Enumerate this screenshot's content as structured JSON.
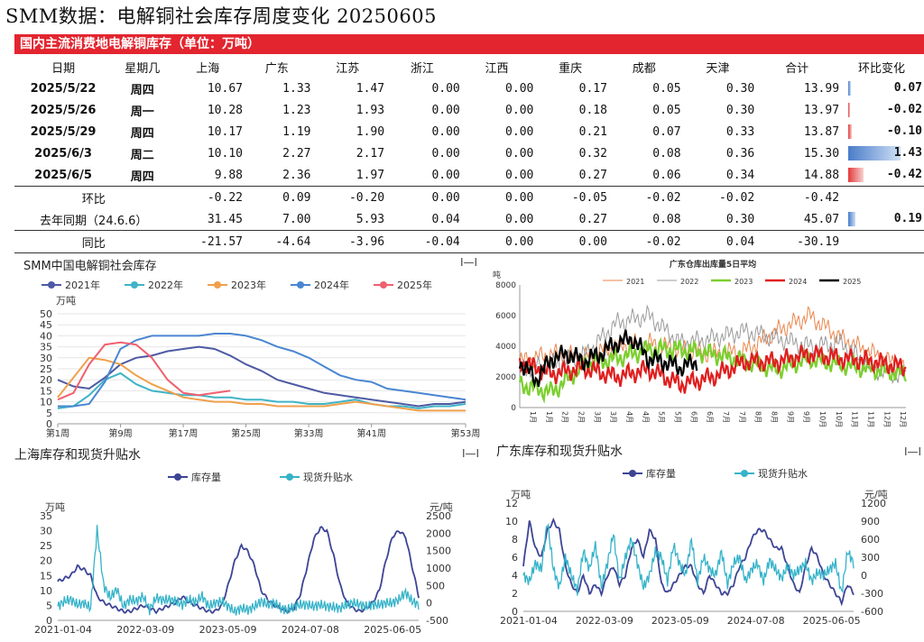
{
  "page_title": "SMM数据：电解铜社会库存周度变化 20250605",
  "table": {
    "banner": "国内主流消费地电解铜库存（单位：万吨）",
    "headers": [
      "日期",
      "星期几",
      "上海",
      "广东",
      "江苏",
      "浙江",
      "江西",
      "重庆",
      "成都",
      "天津",
      "合计",
      "环比变化"
    ],
    "rows": [
      {
        "cells": [
          "2025/5/22",
          "周四",
          "10.67",
          "1.33",
          "1.47",
          "0.00",
          "0.00",
          "0.17",
          "0.05",
          "0.30",
          "13.99"
        ],
        "change": "0.07",
        "change_value": 0.07
      },
      {
        "cells": [
          "2025/5/26",
          "周一",
          "10.28",
          "1.23",
          "1.93",
          "0.00",
          "0.00",
          "0.18",
          "0.05",
          "0.30",
          "13.97"
        ],
        "change": "-0.02",
        "change_value": -0.02
      },
      {
        "cells": [
          "2025/5/29",
          "周四",
          "10.17",
          "1.19",
          "1.90",
          "0.00",
          "0.00",
          "0.21",
          "0.07",
          "0.33",
          "13.87"
        ],
        "change": "-0.10",
        "change_value": -0.1
      },
      {
        "cells": [
          "2025/6/3",
          "周二",
          "10.10",
          "2.27",
          "2.17",
          "0.00",
          "0.00",
          "0.32",
          "0.08",
          "0.36",
          "15.30"
        ],
        "change": "1.43",
        "change_value": 1.43
      },
      {
        "cells": [
          "2025/6/5",
          "周四",
          "9.88",
          "2.36",
          "1.97",
          "0.00",
          "0.00",
          "0.27",
          "0.06",
          "0.34",
          "14.88"
        ],
        "change": "-0.42",
        "change_value": -0.42
      }
    ],
    "hb_row": {
      "label": "环比",
      "cells": [
        "-0.22",
        "0.09",
        "-0.20",
        "0.00",
        "0.00",
        "-0.05",
        "-0.02",
        "-0.02",
        "-0.42"
      ]
    },
    "yoy_row": {
      "label": "去年同期（24.6.6）",
      "cells": [
        "31.45",
        "7.00",
        "5.93",
        "0.04",
        "0.00",
        "0.27",
        "0.08",
        "0.30",
        "45.07"
      ],
      "change": "0.19",
      "change_value": 0.19
    },
    "tb_row": {
      "label": "同比",
      "cells": [
        "-21.57",
        "-4.64",
        "-3.96",
        "-0.04",
        "0.00",
        "0.00",
        "-0.02",
        "0.04",
        "-30.19"
      ]
    }
  },
  "colors": {
    "red": "#e3252f",
    "up_bar": "#4a7cc9",
    "down_bar": "#e33a3a",
    "c2021": "#4e5aa3",
    "c2022": "#3fb4c6",
    "c2023": "#f0a04b",
    "c2024": "#4a86d1",
    "c2025": "#f0606e",
    "gd2021": "#e8864d",
    "gd2022": "#9a9a9a",
    "gd2023": "#7bcf2e",
    "gd2024": "#e01e1e",
    "gd2025": "#000000",
    "stock": "#3d4495",
    "premium": "#36b3c9"
  },
  "menu_glyph": "I—I",
  "chart_data": [
    {
      "type": "line",
      "title": "SMM中国电解铜社会库存",
      "ylabel": "万吨",
      "ylim": [
        0,
        50
      ],
      "yticks": [
        0,
        5,
        10,
        15,
        20,
        25,
        30,
        35,
        40,
        45,
        50
      ],
      "xlim": [
        1,
        53
      ],
      "xticks": [
        {
          "x": 1,
          "label": "第1周"
        },
        {
          "x": 9,
          "label": "第9周"
        },
        {
          "x": 17,
          "label": "第17周"
        },
        {
          "x": 25,
          "label": "第25周"
        },
        {
          "x": 33,
          "label": "第33周"
        },
        {
          "x": 41,
          "label": "第41周"
        },
        {
          "x": 53,
          "label": "第53周"
        }
      ],
      "legend_position": "top",
      "series": [
        {
          "name": "2021年",
          "color": "#4e5aa3",
          "x": [
            1,
            3,
            5,
            7,
            9,
            11,
            13,
            15,
            17,
            19,
            21,
            23,
            25,
            27,
            29,
            31,
            33,
            35,
            37,
            39,
            41,
            43,
            45,
            47,
            49,
            51,
            53
          ],
          "y": [
            20,
            17,
            16,
            21,
            27,
            30,
            31,
            33,
            34,
            35,
            34,
            31,
            27,
            24,
            20,
            18,
            16,
            14,
            13,
            12,
            11,
            10,
            9,
            8,
            9,
            9,
            10
          ]
        },
        {
          "name": "2022年",
          "color": "#3fb4c6",
          "x": [
            1,
            3,
            5,
            7,
            9,
            11,
            13,
            15,
            17,
            19,
            21,
            23,
            25,
            27,
            29,
            31,
            33,
            35,
            37,
            39,
            41,
            43,
            45,
            47,
            49,
            51,
            53
          ],
          "y": [
            7,
            8,
            13,
            20,
            23,
            18,
            15,
            14,
            13,
            13,
            12,
            12,
            11,
            11,
            10,
            10,
            9,
            9,
            10,
            11,
            9,
            8,
            8,
            7,
            8,
            8,
            9
          ]
        },
        {
          "name": "2023年",
          "color": "#f0a04b",
          "x": [
            1,
            3,
            5,
            7,
            9,
            11,
            13,
            15,
            17,
            19,
            21,
            23,
            25,
            27,
            29,
            31,
            33,
            35,
            37,
            39,
            41,
            43,
            45,
            47,
            49,
            51,
            53
          ],
          "y": [
            12,
            21,
            30,
            29,
            27,
            22,
            18,
            15,
            12,
            11,
            10,
            10,
            9,
            9,
            8,
            8,
            8,
            8,
            9,
            10,
            9,
            8,
            7,
            6,
            6,
            6,
            6
          ]
        },
        {
          "name": "2024年",
          "color": "#4a86d1",
          "x": [
            1,
            3,
            5,
            7,
            9,
            11,
            13,
            15,
            17,
            19,
            21,
            23,
            25,
            27,
            29,
            31,
            33,
            35,
            37,
            39,
            41,
            43,
            45,
            47,
            49,
            51,
            53
          ],
          "y": [
            8,
            8,
            9,
            19,
            34,
            38,
            40,
            40,
            40,
            40,
            41,
            41,
            40,
            38,
            35,
            33,
            30,
            26,
            22,
            20,
            19,
            16,
            15,
            14,
            13,
            12,
            11
          ]
        },
        {
          "name": "2025年",
          "color": "#f0606e",
          "x": [
            1,
            3,
            5,
            7,
            9,
            11,
            13,
            15,
            17,
            19,
            21,
            23
          ],
          "y": [
            11,
            14,
            27,
            36,
            37,
            36,
            30,
            20,
            14,
            13,
            14,
            15
          ]
        }
      ]
    },
    {
      "type": "line",
      "title": "广东仓库出库量5日平均",
      "ylabel": "吨",
      "ylim": [
        0,
        8000
      ],
      "yticks": [
        0,
        2000,
        4000,
        6000,
        8000
      ],
      "xlim": [
        0,
        24
      ],
      "xtick_labels": [
        "1月",
        "1月",
        "2月",
        "2月",
        "3月",
        "3月",
        "4月",
        "4月",
        "5月",
        "5月",
        "6月",
        "6月",
        "7月",
        "7月",
        "8月",
        "8月",
        "9月",
        "9月",
        "10月",
        "10月",
        "11月",
        "11月",
        "12月",
        "12月"
      ],
      "legend_position": "top",
      "series": [
        {
          "name": "2021",
          "color": "#e8864d",
          "x": [
            0,
            2,
            4,
            6,
            8,
            10,
            12,
            14,
            16,
            18,
            20,
            22,
            24
          ],
          "y": [
            3000,
            3500,
            3300,
            4000,
            4200,
            3800,
            3500,
            3700,
            5000,
            6000,
            4500,
            3500,
            2500
          ]
        },
        {
          "name": "2022",
          "color": "#9a9a9a",
          "x": [
            0,
            2,
            4,
            6,
            8,
            10,
            12,
            14,
            16,
            18,
            20,
            22,
            24
          ],
          "y": [
            2500,
            2800,
            3400,
            5500,
            6000,
            4200,
            4500,
            5000,
            4500,
            4000,
            4200,
            2500,
            2000
          ]
        },
        {
          "name": "2023",
          "color": "#7bcf2e",
          "x": [
            0,
            2,
            4,
            6,
            8,
            10,
            12,
            14,
            16,
            18,
            20,
            22,
            24
          ],
          "y": [
            1500,
            1000,
            2800,
            3200,
            3800,
            3800,
            3500,
            3000,
            2500,
            3200,
            2800,
            2500,
            2200
          ]
        },
        {
          "name": "2024",
          "color": "#e01e1e",
          "x": [
            0,
            2,
            4,
            6,
            8,
            10,
            12,
            14,
            16,
            18,
            20,
            22,
            24
          ],
          "y": [
            3000,
            2200,
            2600,
            2000,
            2500,
            1500,
            2000,
            3000,
            3000,
            3500,
            3200,
            3000,
            2600
          ]
        },
        {
          "name": "2025",
          "color": "#000000",
          "x": [
            0,
            1,
            2,
            3,
            4,
            5,
            6,
            7,
            8,
            9,
            10,
            11
          ],
          "y": [
            3000,
            1800,
            3200,
            3500,
            3000,
            3500,
            4200,
            4500,
            3200,
            3000,
            2600,
            3000
          ]
        }
      ]
    },
    {
      "type": "line",
      "title": "上海库存和现货升贴水",
      "ylabel": "万吨",
      "y2label": "元/吨",
      "ylim": [
        0,
        35
      ],
      "yticks": [
        0,
        5,
        10,
        15,
        20,
        25,
        30,
        35
      ],
      "y2lim": [
        -500,
        2500
      ],
      "y2ticks": [
        -500,
        0,
        500,
        1000,
        1500,
        2000,
        2500
      ],
      "xtick_labels": [
        "2021-01-04",
        "2022-03-09",
        "2023-05-09",
        "2024-07-08",
        "2025-06-05"
      ],
      "legend_position": "top",
      "series": [
        {
          "name": "库存量",
          "axis": "left",
          "color": "#3d4495",
          "y": [
            13,
            14,
            15,
            18,
            17,
            15,
            8,
            6,
            5,
            4,
            3,
            3,
            4,
            5,
            4,
            3,
            4,
            5,
            6,
            8,
            6,
            5,
            4,
            3,
            3,
            5,
            12,
            20,
            25,
            23,
            18,
            10,
            7,
            5,
            4,
            3,
            4,
            9,
            18,
            27,
            31,
            30,
            22,
            12,
            6,
            4,
            3,
            4,
            6,
            10,
            20,
            28,
            30,
            28,
            18,
            8
          ]
        },
        {
          "name": "现货升贴水",
          "axis": "right",
          "color": "#36b3c9",
          "y": [
            -100,
            50,
            100,
            -50,
            0,
            -150,
            2100,
            500,
            150,
            400,
            -100,
            100,
            50,
            200,
            -200,
            150,
            80,
            100,
            50,
            -50,
            100,
            20,
            200,
            -100,
            0,
            50,
            -100,
            -250,
            -150,
            -200,
            -100,
            50,
            -50,
            0,
            -150,
            -200,
            -100,
            -50,
            -50,
            -100,
            -50,
            -100,
            -120,
            -150,
            -50,
            0,
            -50,
            -100,
            -50,
            -50,
            0,
            0,
            100,
            300,
            50,
            -50
          ]
        }
      ]
    },
    {
      "type": "line",
      "title": "广东库存和现货升贴水",
      "ylabel": "万吨",
      "y2label": "元/吨",
      "ylim": [
        0,
        12
      ],
      "yticks": [
        0,
        2,
        4,
        6,
        8,
        10,
        12
      ],
      "y2lim": [
        -600,
        1200
      ],
      "y2ticks": [
        -600,
        -300,
        0,
        300,
        600,
        900,
        1200
      ],
      "xtick_labels": [
        "2021-01-04",
        "2022-03-09",
        "2023-05-09",
        "2024-07-08",
        "2025-06-05"
      ],
      "legend_position": "top",
      "series": [
        {
          "name": "库存量",
          "axis": "left",
          "color": "#3d4495",
          "y": [
            5,
            10,
            7,
            6,
            9,
            10,
            9,
            5,
            3,
            2,
            4,
            2,
            3,
            2,
            4,
            5,
            3,
            4,
            7,
            8,
            6,
            9,
            8,
            3,
            2,
            3,
            4,
            5,
            5,
            3,
            2,
            4,
            3,
            2,
            2,
            3,
            5,
            6,
            8,
            9,
            9,
            8,
            7,
            7,
            5,
            3,
            2,
            5,
            7,
            6,
            4,
            3,
            2,
            1,
            3,
            2
          ]
        },
        {
          "name": "现货升贴水",
          "axis": "right",
          "color": "#36b3c9",
          "y": [
            0,
            -100,
            200,
            100,
            900,
            100,
            -200,
            300,
            0,
            -250,
            400,
            100,
            500,
            -200,
            200,
            700,
            -100,
            300,
            600,
            200,
            -200,
            0,
            400,
            300,
            -100,
            500,
            200,
            0,
            600,
            -100,
            300,
            100,
            0,
            400,
            -150,
            200,
            300,
            -100,
            100,
            200,
            -100,
            250,
            100,
            -50,
            150,
            0,
            100,
            200,
            -100,
            50,
            0,
            100,
            200,
            -300,
            400,
            200
          ]
        }
      ]
    }
  ]
}
